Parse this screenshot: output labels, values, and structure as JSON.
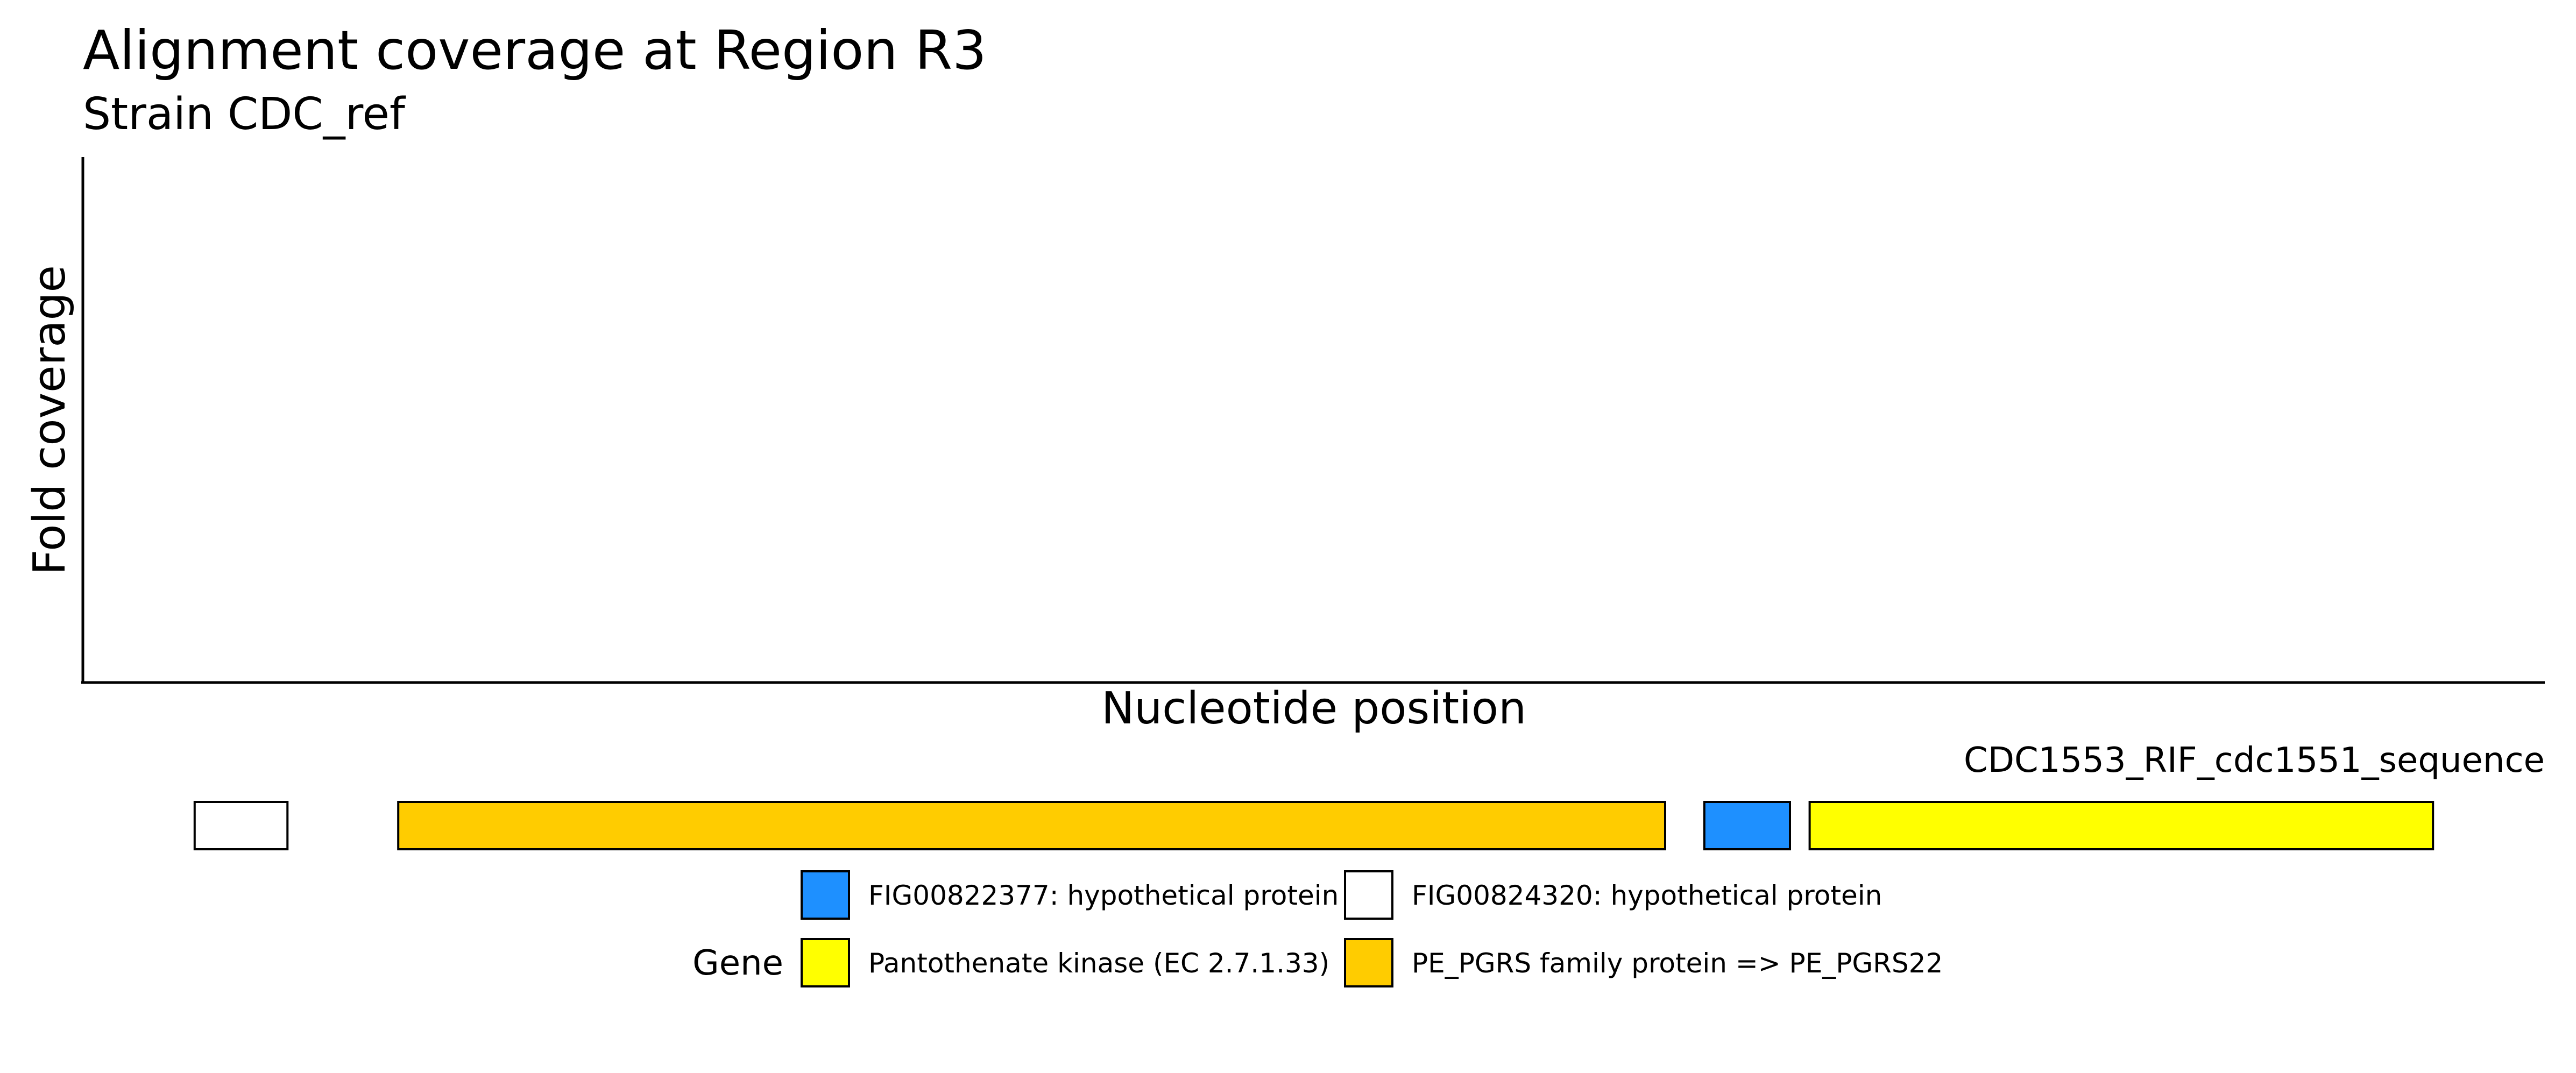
{
  "chart_data": {
    "type": "coverage_with_gene_track",
    "title": "Alignment coverage at Region R3",
    "subtitle": "Strain CDC_ref",
    "xlabel": "Nucleotide position",
    "ylabel": "Fold coverage",
    "grid": false,
    "coverage": [],
    "track_label": "CDC1553_RIF_cdc1551_sequence",
    "genes": [
      {
        "name": "FIG00824320: hypothetical protein",
        "color": "#ffffff",
        "start_frac": 0.0454,
        "end_frac": 0.0831
      },
      {
        "name": "PE_PGRS family protein => PE_PGRS22",
        "color": "#ffcc00",
        "start_frac": 0.1281,
        "end_frac": 0.6427
      },
      {
        "name": "FIG00822377: hypothetical protein",
        "color": "#1e90ff",
        "start_frac": 0.6586,
        "end_frac": 0.6934
      },
      {
        "name": "Pantothenate kinase (EC 2.7.1.33)",
        "color": "#ffff00",
        "start_frac": 0.7014,
        "end_frac": 0.9546
      }
    ],
    "legend": {
      "title": "Gene",
      "placement": "bottom",
      "entries": [
        {
          "label": "FIG00822377: hypothetical protein",
          "color": "#1e90ff"
        },
        {
          "label": "FIG00824320: hypothetical protein",
          "color": "#ffffff"
        },
        {
          "label": "Pantothenate kinase (EC 2.7.1.33)",
          "color": "#ffff00"
        },
        {
          "label": "PE_PGRS family protein => PE_PGRS22",
          "color": "#ffcc00"
        }
      ]
    }
  }
}
